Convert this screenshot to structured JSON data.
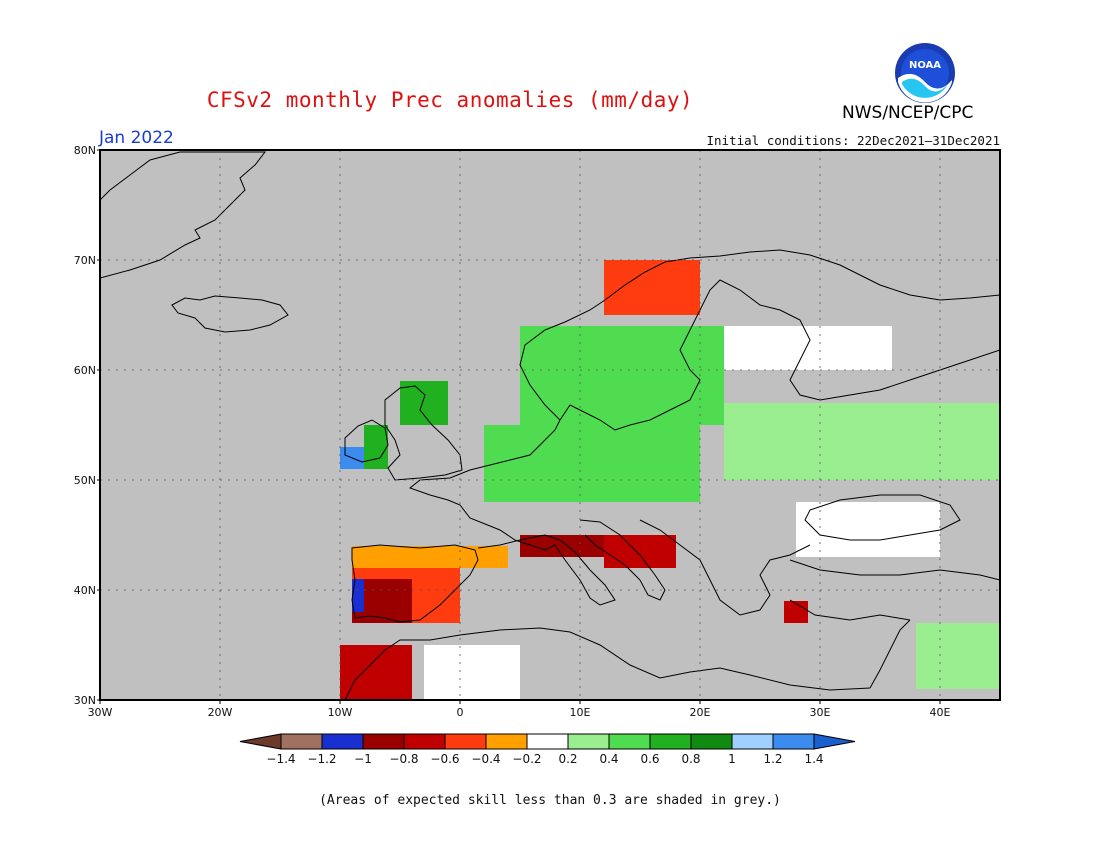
{
  "title": "CFSv2 monthly Prec anomalies (mm/day)",
  "month": "Jan 2022",
  "initial_conditions": "Initial conditions: 22Dec2021–31Dec2021",
  "agency": "NWS/NCEP/CPC",
  "logo_text": "NOAA",
  "footnote": "(Areas of expected skill less than 0.3 are shaded in grey.)",
  "map": {
    "lon_range": [
      -30,
      45
    ],
    "lat_range": [
      30,
      80
    ],
    "background_color": "#c0c0c0",
    "coast_color": "#000000",
    "lat_labels": [
      "30N",
      "40N",
      "50N",
      "60N",
      "70N",
      "80N"
    ],
    "lon_labels": [
      "30W",
      "20W",
      "10W",
      "0",
      "10E",
      "20E",
      "30E",
      "40E"
    ],
    "lat_values": [
      30,
      40,
      50,
      60,
      70,
      80
    ],
    "lon_values": [
      -30,
      -20,
      -10,
      0,
      10,
      20,
      30,
      40
    ]
  },
  "colorbar": {
    "labels": [
      "−1.4",
      "−1.2",
      "−1",
      "−0.8",
      "−0.6",
      "−0.4",
      "−0.2",
      "0.2",
      "0.4",
      "0.6",
      "0.8",
      "1",
      "1.2",
      "1.4"
    ],
    "colors": [
      "#6b3a2a",
      "#a07060",
      "#1a2fd0",
      "#9a0000",
      "#c00000",
      "#ff3c10",
      "#ffa000",
      "#ffffff",
      "#9aee90",
      "#50dc50",
      "#20b020",
      "#108a10",
      "#a0d0ff",
      "#3c8cf0",
      "#1a5fd0"
    ]
  },
  "anomaly_regions": [
    {
      "name": "scandinavia-wet",
      "color": "#50dc50",
      "lon": [
        5,
        22
      ],
      "lat": [
        55,
        64
      ]
    },
    {
      "name": "central-europe-wet",
      "color": "#50dc50",
      "lon": [
        2,
        20
      ],
      "lat": [
        48,
        55
      ]
    },
    {
      "name": "eastern-europe-wet",
      "color": "#9aee90",
      "lon": [
        22,
        45
      ],
      "lat": [
        50,
        57
      ]
    },
    {
      "name": "finland-dry-neutral",
      "color": "#ffffff",
      "lon": [
        22,
        36
      ],
      "lat": [
        60,
        64
      ]
    },
    {
      "name": "scotland-wet",
      "color": "#20b020",
      "lon": [
        -5,
        -1
      ],
      "lat": [
        55,
        59
      ]
    },
    {
      "name": "ireland-wet",
      "color": "#20b020",
      "lon": [
        -8,
        -6
      ],
      "lat": [
        51,
        55
      ]
    },
    {
      "name": "ireland-very-wet",
      "color": "#3c8cf0",
      "lon": [
        -10,
        -8
      ],
      "lat": [
        51,
        53
      ]
    },
    {
      "name": "iberia-dry",
      "color": "#ff3c10",
      "lon": [
        -9,
        0
      ],
      "lat": [
        37,
        42
      ]
    },
    {
      "name": "iberia-very-dry",
      "color": "#9a0000",
      "lon": [
        -9,
        -4
      ],
      "lat": [
        37,
        41
      ]
    },
    {
      "name": "portugal-wet",
      "color": "#1a2fd0",
      "lon": [
        -9,
        -8
      ],
      "lat": [
        38,
        41
      ]
    },
    {
      "name": "north-spain-dry",
      "color": "#ffa000",
      "lon": [
        -9,
        4
      ],
      "lat": [
        42,
        44
      ]
    },
    {
      "name": "south-france-dry",
      "color": "#9a0000",
      "lon": [
        5,
        12
      ],
      "lat": [
        43,
        45
      ]
    },
    {
      "name": "adriatic-dry",
      "color": "#c00000",
      "lon": [
        12,
        18
      ],
      "lat": [
        42,
        45
      ]
    },
    {
      "name": "norway-coast-dry",
      "color": "#ff3c10",
      "lon": [
        12,
        20
      ],
      "lat": [
        65,
        70
      ]
    },
    {
      "name": "morocco-dry",
      "color": "#c00000",
      "lon": [
        -10,
        -4
      ],
      "lat": [
        30,
        35
      ]
    },
    {
      "name": "north-africa-neutral",
      "color": "#ffffff",
      "lon": [
        -3,
        5
      ],
      "lat": [
        30,
        35
      ]
    },
    {
      "name": "turkey-dry",
      "color": "#c00000",
      "lon": [
        27,
        29
      ],
      "lat": [
        37,
        39
      ]
    },
    {
      "name": "middle-east-wet",
      "color": "#9aee90",
      "lon": [
        38,
        45
      ],
      "lat": [
        31,
        37
      ]
    },
    {
      "name": "black-sea-neutral",
      "color": "#ffffff",
      "lon": [
        28,
        40
      ],
      "lat": [
        43,
        48
      ]
    }
  ]
}
